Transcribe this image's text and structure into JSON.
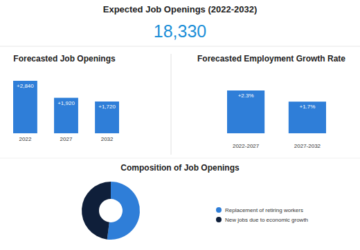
{
  "header": {
    "title": "Expected Job Openings (2022-2032)",
    "value": "18,330"
  },
  "chart_data": [
    {
      "type": "bar",
      "title": "Forecasted Job Openings",
      "categories": [
        "2022",
        "2027",
        "2032"
      ],
      "values": [
        2840,
        1920,
        1720
      ],
      "value_labels": [
        "+2,840",
        "+1,920",
        "+1,720"
      ],
      "color": "#2f7ed8",
      "ylim": [
        0,
        2840
      ],
      "data_labels": true,
      "tick_labels": "x"
    },
    {
      "type": "bar",
      "title": "Forecasted Employment Growth Rate",
      "categories": [
        "2022-2027",
        "2027-2032"
      ],
      "values": [
        2.3,
        1.7
      ],
      "value_labels": [
        "+2.3%",
        "+1.7%"
      ],
      "color": "#2f7ed8",
      "ylim": [
        0,
        2.3
      ],
      "data_labels": true,
      "tick_labels": "x"
    },
    {
      "type": "donut",
      "title": "Composition of Job Openings",
      "categories": [
        "Replacement of retiring workers",
        "New jobs due to economic growth"
      ],
      "values": [
        52,
        48
      ],
      "colors": [
        "#2f7ed8",
        "#0f1f3a"
      ],
      "legend": "right"
    }
  ]
}
